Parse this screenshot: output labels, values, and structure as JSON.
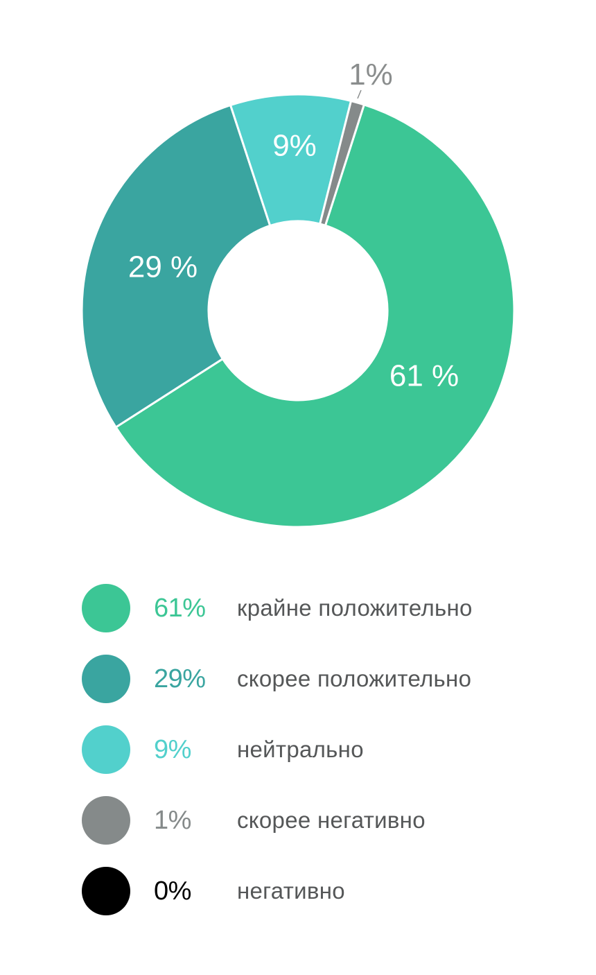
{
  "chart_data": {
    "type": "pie",
    "subtype": "donut",
    "title": "",
    "start_angle_deg": 17.8,
    "direction": "clockwise",
    "categories": [
      "крайне положительно",
      "скорее положительно",
      "нейтрально",
      "скорее негативно",
      "негативно"
    ],
    "values": [
      61,
      29,
      9,
      1,
      0
    ],
    "unit": "%",
    "colors": [
      "#3cc695",
      "#3aa5a0",
      "#52d0cc",
      "#858a8a",
      "#000000"
    ],
    "slice_labels": [
      "61 %",
      "29 %",
      "9%",
      "1%",
      ""
    ],
    "legend_position": "bottom"
  },
  "legend": {
    "items": [
      {
        "percent": "61%",
        "label": "крайне положительно",
        "color": "#3cc695"
      },
      {
        "percent": "29%",
        "label": "скорее положительно",
        "color": "#3aa5a0"
      },
      {
        "percent": "9%",
        "label": "нейтрально",
        "color": "#52d0cc"
      },
      {
        "percent": "1%",
        "label": "скорее негативно",
        "color": "#858a8a"
      },
      {
        "percent": "0%",
        "label": "негативно",
        "color": "#000000"
      }
    ]
  }
}
